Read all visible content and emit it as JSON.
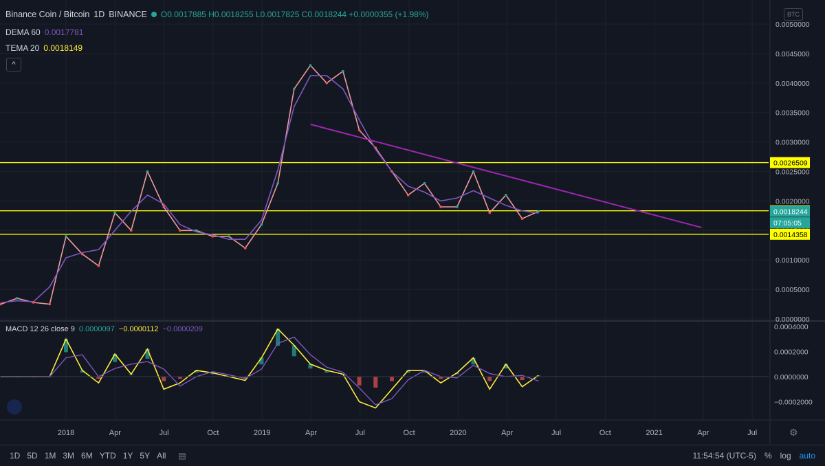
{
  "header": {
    "symbol": "Binance Coin / Bitcoin",
    "interval": "1D",
    "exchange": "BINANCE",
    "ohlc": "O0.0017885 H0.0018255 L0.0017825 C0.0018244 +0.0000355 (+1.98%)",
    "dema_label": "DEMA 60",
    "dema_value": "0.0017781",
    "tema_label": "TEMA 20",
    "tema_value": "0.0018149",
    "collapse": "^"
  },
  "macd": {
    "label": "MACD 12 26 close 9",
    "v1": "0.0000097",
    "v2": "−0.0000112",
    "v3": "−0.0000209"
  },
  "price_axis": {
    "currency": "BTC",
    "ticks": [
      "0.0050000",
      "0.0045000",
      "0.0040000",
      "0.0035000",
      "0.0030000",
      "0.0025000",
      "0.0020000",
      "0.0015000",
      "0.0010000",
      "0.0005000",
      "0.0000000"
    ],
    "macd_ticks": [
      "0.0004000",
      "0.0002000",
      "0.0000000",
      "−0.0002000"
    ],
    "tags": [
      {
        "label": "0.0026509",
        "value": 0.0026509,
        "color": "#ffff00",
        "text": "#000000"
      },
      {
        "label": "0.0018330",
        "value": 0.001833,
        "color": "#ffff00",
        "text": "#000000"
      },
      {
        "label": "0.0018244",
        "value": 0.0018244,
        "color": "#26a69a",
        "text": "#ffffff"
      },
      {
        "label": "07:05:05",
        "value": 0.00163,
        "color": "#26a69a",
        "text": "#ffffff"
      },
      {
        "label": "0.0014358",
        "value": 0.0014358,
        "color": "#ffff00",
        "text": "#000000"
      }
    ]
  },
  "time_axis": {
    "labels": [
      "2018",
      "Apr",
      "Jul",
      "Oct",
      "2019",
      "Apr",
      "Jul",
      "Oct",
      "2020",
      "Apr",
      "Jul",
      "Oct",
      "2021",
      "Apr",
      "Jul"
    ]
  },
  "toolbar": {
    "ranges": [
      "1D",
      "5D",
      "1M",
      "3M",
      "6M",
      "YTD",
      "1Y",
      "5Y",
      "All"
    ],
    "clock": "11:54:54 (UTC-5)",
    "percent": "%",
    "log": "log",
    "auto": "auto"
  },
  "colors": {
    "bg": "#131722",
    "up": "#26a69a",
    "down": "#ef5350",
    "hline": "#ffff00",
    "trend": "#9c27b0",
    "dema": "#7e57c2",
    "macd_line": "#ffeb3b",
    "signal_line": "#7e57c2"
  },
  "chart_data": {
    "type": "line",
    "title": "Binance Coin / Bitcoin",
    "x": [
      "2017-09",
      "2017-10",
      "2017-11",
      "2017-12",
      "2018-01",
      "2018-02",
      "2018-03",
      "2018-04",
      "2018-05",
      "2018-06",
      "2018-07",
      "2018-08",
      "2018-09",
      "2018-10",
      "2018-11",
      "2018-12",
      "2019-01",
      "2019-02",
      "2019-03",
      "2019-04",
      "2019-05",
      "2019-06",
      "2019-07",
      "2019-08",
      "2019-09",
      "2019-10",
      "2019-11",
      "2019-12",
      "2020-01",
      "2020-02",
      "2020-03",
      "2020-04",
      "2020-05",
      "2020-06"
    ],
    "series": [
      {
        "name": "BNB/BTC",
        "values": [
          0.00025,
          0.00035,
          0.00028,
          0.00025,
          0.0014,
          0.0011,
          0.0009,
          0.0018,
          0.0015,
          0.0025,
          0.0019,
          0.0015,
          0.0015,
          0.0014,
          0.0014,
          0.0012,
          0.0016,
          0.0023,
          0.0039,
          0.0043,
          0.004,
          0.0042,
          0.0032,
          0.0029,
          0.0025,
          0.0021,
          0.0023,
          0.0019,
          0.0019,
          0.0025,
          0.0018,
          0.0021,
          0.0017,
          0.0018244
        ]
      }
    ],
    "horizontal_levels": [
      0.0026509,
      0.001833,
      0.0014358
    ],
    "trendline": {
      "from": [
        "2019-04",
        0.0033
      ],
      "to": [
        "2021-04",
        0.00155
      ]
    },
    "macd": {
      "values": [
        0,
        0,
        0,
        0,
        0.0003,
        5e-05,
        -5e-05,
        0.00018,
        2e-05,
        0.00022,
        -0.0001,
        -5e-05,
        5e-05,
        3e-05,
        0,
        -3e-05,
        0.00015,
        0.00038,
        0.00025,
        0.0001,
        5e-05,
        2e-05,
        -0.0002,
        -0.00025,
        -0.0001,
        5e-05,
        5e-05,
        -5e-05,
        3e-05,
        0.00015,
        -0.0001,
        0.0001,
        -8e-05,
        9.7e-06
      ]
    },
    "ylim": [
      0,
      0.005
    ],
    "legend": "top-left"
  }
}
